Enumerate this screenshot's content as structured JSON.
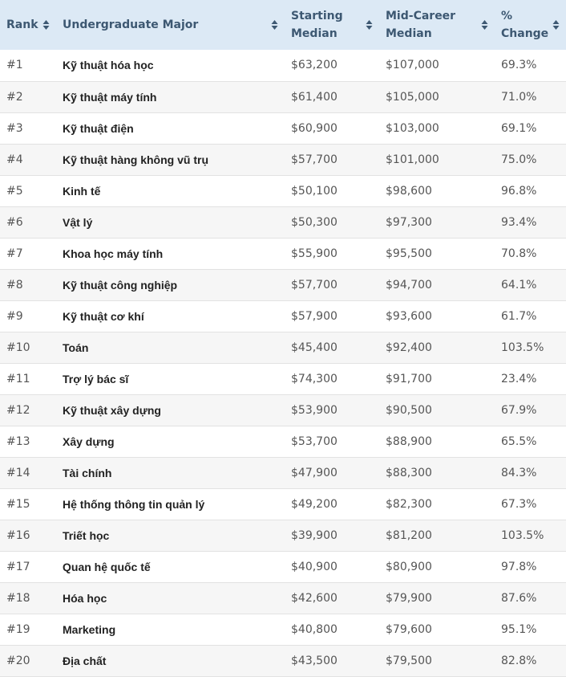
{
  "table": {
    "headers": [
      "Rank",
      "Undergraduate Major",
      "Starting Median",
      "Mid-Career Median",
      "% Change"
    ],
    "rows": [
      [
        "#1",
        "Kỹ thuật hóa học",
        "$63,200",
        "$107,000",
        "69.3%"
      ],
      [
        "#2",
        "Kỹ thuật máy tính",
        "$61,400",
        "$105,000",
        "71.0%"
      ],
      [
        "#3",
        "Kỹ thuật điện",
        "$60,900",
        "$103,000",
        "69.1%"
      ],
      [
        "#4",
        "Kỹ thuật hàng không vũ trụ",
        "$57,700",
        "$101,000",
        "75.0%"
      ],
      [
        "#5",
        "Kinh tế",
        "$50,100",
        "$98,600",
        "96.8%"
      ],
      [
        "#6",
        "Vật lý",
        "$50,300",
        "$97,300",
        "93.4%"
      ],
      [
        "#7",
        "Khoa học máy tính",
        "$55,900",
        "$95,500",
        "70.8%"
      ],
      [
        "#8",
        "Kỹ thuật công nghiệp",
        "$57,700",
        "$94,700",
        "64.1%"
      ],
      [
        "#9",
        "Kỹ thuật cơ khí",
        "$57,900",
        "$93,600",
        "61.7%"
      ],
      [
        "#10",
        "Toán",
        "$45,400",
        "$92,400",
        "103.5%"
      ],
      [
        "#11",
        "Trợ lý bác sĩ",
        "$74,300",
        "$91,700",
        "23.4%"
      ],
      [
        "#12",
        "Kỹ thuật xây dựng",
        "$53,900",
        "$90,500",
        "67.9%"
      ],
      [
        "#13",
        "Xây dựng",
        "$53,700",
        "$88,900",
        "65.5%"
      ],
      [
        "#14",
        "Tài chính",
        "$47,900",
        "$88,300",
        "84.3%"
      ],
      [
        "#15",
        "Hệ thống thông tin quản lý",
        "$49,200",
        "$82,300",
        "67.3%"
      ],
      [
        "#16",
        "Triết học",
        "$39,900",
        "$81,200",
        "103.5%"
      ],
      [
        "#17",
        "Quan hệ quốc tế",
        "$40,900",
        "$80,900",
        "97.8%"
      ],
      [
        "#18",
        "Hóa học",
        "$42,600",
        "$79,900",
        "87.6%"
      ],
      [
        "#19",
        "Marketing",
        "$40,800",
        "$79,600",
        "95.1%"
      ],
      [
        "#20",
        "Địa chất",
        "$43,500",
        "$79,500",
        "82.8%"
      ]
    ]
  }
}
